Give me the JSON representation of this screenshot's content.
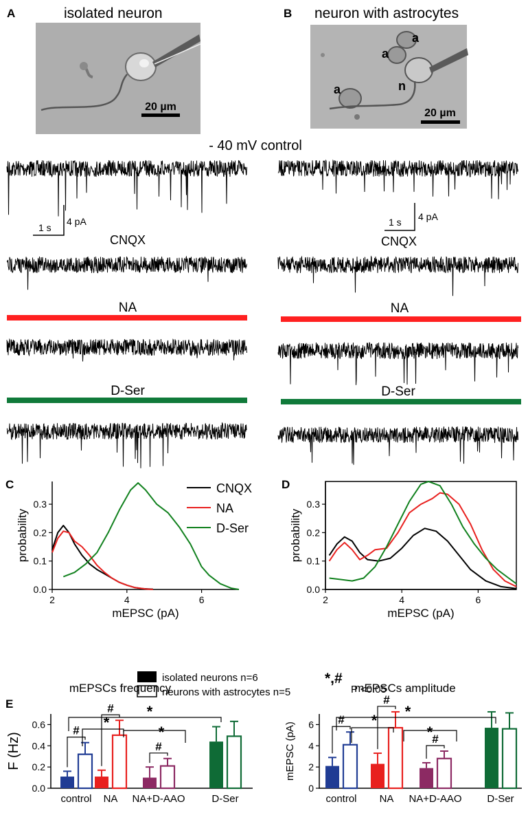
{
  "panel_a": {
    "letter": "A",
    "title": "isolated neuron",
    "scalebar": "20 µm"
  },
  "panel_b": {
    "letter": "B",
    "title": "neuron with astrocytes",
    "scalebar": "20 µm",
    "labels": [
      "a",
      "a",
      "n",
      "a"
    ]
  },
  "traces": {
    "holding_label": "- 40 mV  control",
    "scale_time": "1 s",
    "scale_current": "4 pA",
    "cnqx_label": "CNQX",
    "na_label": "NA",
    "dser_label": "D-Ser",
    "colors": {
      "na_bar": "#ff2020",
      "dser_bar": "#107a3a",
      "trace": "#000000"
    }
  },
  "chart_data": [
    {
      "panel": "C",
      "type": "line",
      "xlabel": "mEPSC (pA)",
      "ylabel": "probability",
      "xlim": [
        2,
        7
      ],
      "ylim": [
        0,
        0.38
      ],
      "xticks": [
        2,
        4,
        6
      ],
      "yticks": [
        0.0,
        0.1,
        0.2,
        0.3
      ],
      "legend": "top-right",
      "series": [
        {
          "name": "CNQX",
          "color": "#000000",
          "points": [
            [
              2.0,
              0.14
            ],
            [
              2.15,
              0.2
            ],
            [
              2.3,
              0.225
            ],
            [
              2.45,
              0.2
            ],
            [
              2.6,
              0.16
            ],
            [
              2.8,
              0.12
            ],
            [
              3.0,
              0.09
            ],
            [
              3.2,
              0.07
            ],
            [
              3.4,
              0.055
            ],
            [
              3.6,
              0.04
            ],
            [
              3.8,
              0.025
            ],
            [
              4.0,
              0.015
            ],
            [
              4.2,
              0.007
            ],
            [
              4.4,
              0.003
            ],
            [
              4.7,
              0.001
            ]
          ]
        },
        {
          "name": "NA",
          "color": "#e8201e",
          "points": [
            [
              2.0,
              0.13
            ],
            [
              2.15,
              0.18
            ],
            [
              2.3,
              0.205
            ],
            [
              2.45,
              0.2
            ],
            [
              2.6,
              0.17
            ],
            [
              2.8,
              0.15
            ],
            [
              3.0,
              0.12
            ],
            [
              3.2,
              0.085
            ],
            [
              3.4,
              0.06
            ],
            [
              3.6,
              0.04
            ],
            [
              3.8,
              0.025
            ],
            [
              4.0,
              0.015
            ],
            [
              4.2,
              0.007
            ],
            [
              4.5,
              0.002
            ],
            [
              4.7,
              0.0
            ]
          ]
        },
        {
          "name": "D-Ser",
          "color": "#11811e",
          "points": [
            [
              2.3,
              0.045
            ],
            [
              2.6,
              0.06
            ],
            [
              2.9,
              0.09
            ],
            [
              3.2,
              0.13
            ],
            [
              3.5,
              0.2
            ],
            [
              3.8,
              0.28
            ],
            [
              4.1,
              0.35
            ],
            [
              4.3,
              0.375
            ],
            [
              4.5,
              0.35
            ],
            [
              4.8,
              0.3
            ],
            [
              5.1,
              0.27
            ],
            [
              5.4,
              0.22
            ],
            [
              5.7,
              0.16
            ],
            [
              6.0,
              0.08
            ],
            [
              6.2,
              0.05
            ],
            [
              6.5,
              0.02
            ],
            [
              6.8,
              0.004
            ],
            [
              7.0,
              0.0
            ]
          ]
        }
      ]
    },
    {
      "panel": "D",
      "type": "line",
      "xlabel": "mEPSC (pA)",
      "ylabel": "probability",
      "xlim": [
        2,
        7
      ],
      "ylim": [
        0,
        0.38
      ],
      "xticks": [
        2,
        4,
        6
      ],
      "yticks": [
        0.0,
        0.1,
        0.2,
        0.3
      ],
      "series": [
        {
          "name": "CNQX",
          "color": "#000000",
          "points": [
            [
              2.1,
              0.12
            ],
            [
              2.3,
              0.16
            ],
            [
              2.5,
              0.185
            ],
            [
              2.7,
              0.17
            ],
            [
              2.9,
              0.13
            ],
            [
              3.1,
              0.105
            ],
            [
              3.4,
              0.1
            ],
            [
              3.7,
              0.11
            ],
            [
              4.0,
              0.145
            ],
            [
              4.3,
              0.19
            ],
            [
              4.6,
              0.215
            ],
            [
              4.9,
              0.205
            ],
            [
              5.2,
              0.17
            ],
            [
              5.5,
              0.12
            ],
            [
              5.8,
              0.07
            ],
            [
              6.2,
              0.03
            ],
            [
              6.6,
              0.01
            ],
            [
              7.0,
              0.003
            ]
          ]
        },
        {
          "name": "NA",
          "color": "#e8201e",
          "points": [
            [
              2.1,
              0.1
            ],
            [
              2.3,
              0.14
            ],
            [
              2.5,
              0.165
            ],
            [
              2.7,
              0.14
            ],
            [
              2.9,
              0.105
            ],
            [
              3.1,
              0.12
            ],
            [
              3.3,
              0.14
            ],
            [
              3.6,
              0.145
            ],
            [
              3.9,
              0.2
            ],
            [
              4.2,
              0.27
            ],
            [
              4.5,
              0.3
            ],
            [
              4.8,
              0.32
            ],
            [
              5.0,
              0.34
            ],
            [
              5.2,
              0.335
            ],
            [
              5.5,
              0.3
            ],
            [
              5.8,
              0.23
            ],
            [
              6.1,
              0.14
            ],
            [
              6.4,
              0.07
            ],
            [
              6.7,
              0.03
            ],
            [
              7.0,
              0.01
            ]
          ]
        },
        {
          "name": "D-Ser",
          "color": "#11811e",
          "points": [
            [
              2.1,
              0.04
            ],
            [
              2.4,
              0.035
            ],
            [
              2.7,
              0.03
            ],
            [
              3.0,
              0.04
            ],
            [
              3.3,
              0.08
            ],
            [
              3.6,
              0.15
            ],
            [
              3.9,
              0.23
            ],
            [
              4.2,
              0.31
            ],
            [
              4.5,
              0.37
            ],
            [
              4.7,
              0.38
            ],
            [
              5.0,
              0.365
            ],
            [
              5.3,
              0.3
            ],
            [
              5.6,
              0.22
            ],
            [
              5.9,
              0.16
            ],
            [
              6.2,
              0.11
            ],
            [
              6.5,
              0.07
            ],
            [
              6.8,
              0.04
            ],
            [
              7.0,
              0.02
            ]
          ]
        }
      ]
    },
    {
      "panel": "E",
      "type": "bar",
      "title": "mEPSCs frequency",
      "ylabel": "F (Hz)",
      "ylim": [
        0,
        0.7
      ],
      "yticks": [
        0.0,
        0.2,
        0.4,
        0.6
      ],
      "categories": [
        "control",
        "NA",
        "NA+D-AAO",
        "D-Ser"
      ],
      "colors": [
        "#203c94",
        "#e8201e",
        "#8c2a63",
        "#0f6b36"
      ],
      "series": [
        {
          "name": "isolated neurons n=6",
          "fill": "solid",
          "values": [
            0.11,
            0.11,
            0.1,
            0.44
          ],
          "errors": [
            0.05,
            0.06,
            0.1,
            0.14
          ]
        },
        {
          "name": "neurons with astrocytes n=5",
          "fill": "open",
          "values": [
            0.32,
            0.5,
            0.21,
            0.49
          ],
          "errors": [
            0.11,
            0.14,
            0.07,
            0.14
          ]
        }
      ],
      "significance": [
        "#",
        "#",
        "#",
        "*",
        "*",
        "*"
      ]
    },
    {
      "panel": "E",
      "type": "bar",
      "title": "mEPSCs amplitude",
      "ylabel": "mEPSC (pA)",
      "ylim": [
        0,
        7
      ],
      "yticks": [
        0,
        2,
        4,
        6
      ],
      "categories": [
        "control",
        "NA",
        "NA+D-AAO",
        "D-Ser"
      ],
      "colors": [
        "#203c94",
        "#e8201e",
        "#8c2a63",
        "#0f6b36"
      ],
      "series": [
        {
          "name": "isolated neurons n=6",
          "fill": "solid",
          "values": [
            2.1,
            2.3,
            1.9,
            5.7
          ],
          "errors": [
            0.8,
            1.0,
            0.5,
            1.5
          ]
        },
        {
          "name": "neurons with astrocytes n=5",
          "fill": "open",
          "values": [
            4.1,
            5.7,
            2.8,
            5.6
          ],
          "errors": [
            1.2,
            1.5,
            0.7,
            1.5
          ]
        }
      ],
      "significance": [
        "#",
        "#",
        "#",
        "*",
        "*",
        "*"
      ]
    }
  ],
  "panel_c_letter": "C",
  "panel_d_letter": "D",
  "panel_e_letter": "E",
  "legend_e": {
    "solid": "isolated neurons n=6",
    "open": "neurons with astrocytes n=5"
  },
  "significance_note": {
    "symbols": "*,#",
    "text": "P <0.05"
  }
}
